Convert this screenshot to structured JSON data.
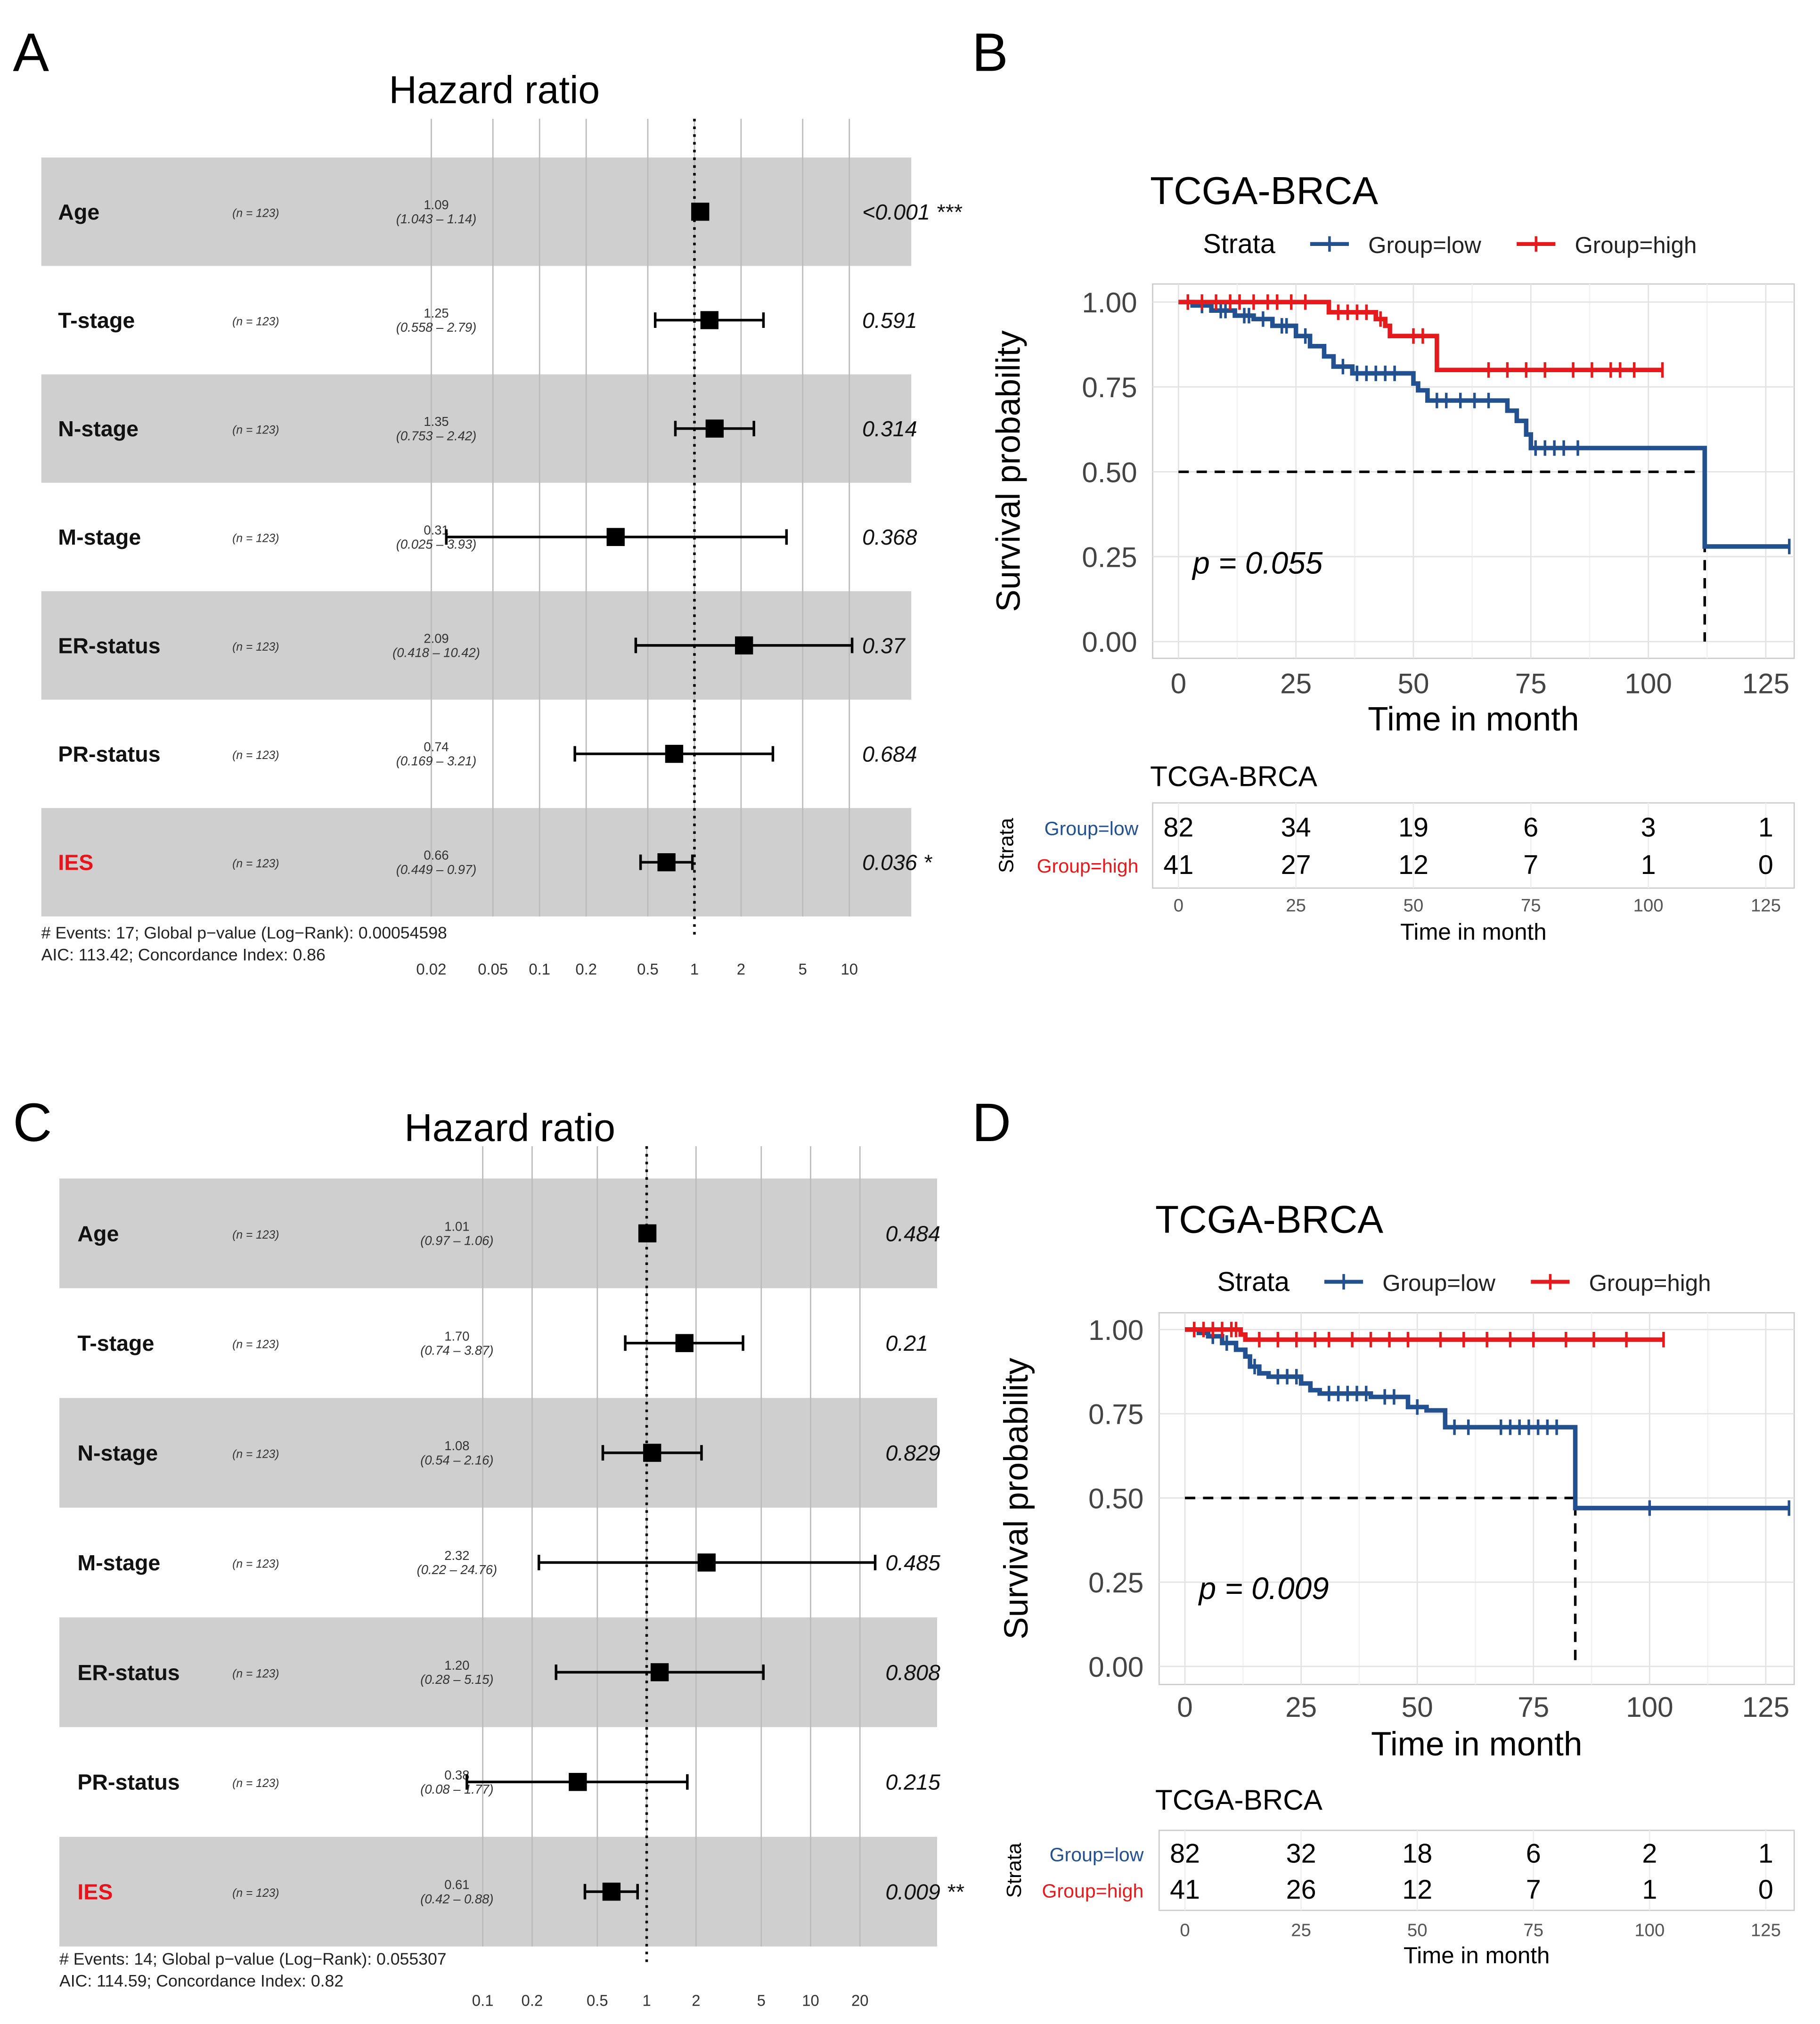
{
  "panel_letters": [
    "A",
    "B",
    "C",
    "D"
  ],
  "chart_data": [
    {
      "type": "forest",
      "title": "Hazard ratio",
      "rows": [
        {
          "label": "Age",
          "n": "(n = 123)",
          "hr": "1.09",
          "ci": "(1.043 – 1.14)",
          "est": 1.09,
          "lo": 1.043,
          "hi": 1.14,
          "p": "<0.001 ***",
          "highlight": false
        },
        {
          "label": "T-stage",
          "n": "(n = 123)",
          "hr": "1.25",
          "ci": "(0.558 – 2.79)",
          "est": 1.25,
          "lo": 0.558,
          "hi": 2.79,
          "p": "0.591",
          "highlight": false
        },
        {
          "label": "N-stage",
          "n": "(n = 123)",
          "hr": "1.35",
          "ci": "(0.753 – 2.42)",
          "est": 1.35,
          "lo": 0.753,
          "hi": 2.42,
          "p": "0.314",
          "highlight": false
        },
        {
          "label": "M-stage",
          "n": "(n = 123)",
          "hr": "0.31",
          "ci": "(0.025 – 3.93)",
          "est": 0.31,
          "lo": 0.025,
          "hi": 3.93,
          "p": "0.368",
          "highlight": false
        },
        {
          "label": "ER-status",
          "n": "(n = 123)",
          "hr": "2.09",
          "ci": "(0.418 – 10.42)",
          "est": 2.09,
          "lo": 0.418,
          "hi": 10.42,
          "p": "0.37",
          "highlight": false
        },
        {
          "label": "PR-status",
          "n": "(n = 123)",
          "hr": "0.74",
          "ci": "(0.169 – 3.21)",
          "est": 0.74,
          "lo": 0.169,
          "hi": 3.21,
          "p": "0.684",
          "highlight": false
        },
        {
          "label": "IES",
          "n": "(n = 123)",
          "hr": "0.66",
          "ci": "(0.449 – 0.97)",
          "est": 0.66,
          "lo": 0.449,
          "hi": 0.97,
          "p": "0.036 *",
          "highlight": true
        }
      ],
      "footer": [
        "# Events: 17; Global p−value (Log−Rank): 0.00054598",
        "AIC: 113.42; Concordance Index: 0.86"
      ],
      "xscale": "log",
      "xticks": [
        0.02,
        0.05,
        0.1,
        0.2,
        0.5,
        1,
        2,
        5,
        10
      ],
      "xtick_labels": [
        "0.02",
        "0.05",
        "0.1",
        "0.2",
        "0.5",
        "1",
        "2",
        "5",
        "10"
      ],
      "reference": 1
    },
    {
      "type": "line",
      "subtype": "kaplan-meier",
      "title": "TCGA-BRCA",
      "legend": {
        "title": "Strata",
        "placement": "top",
        "items": [
          "Group=low",
          "Group=high"
        ]
      },
      "xlabel": "Time in month",
      "ylabel": "Survival probability",
      "xlim": [
        0,
        130
      ],
      "ylim": [
        0,
        1
      ],
      "xticks": [
        0,
        25,
        50,
        75,
        100,
        125
      ],
      "xtick_labels": [
        "0",
        "25",
        "50",
        "75",
        "100",
        "125"
      ],
      "yticks": [
        0,
        0.25,
        0.5,
        0.75,
        1
      ],
      "ytick_labels": [
        "0.00",
        "0.25",
        "0.50",
        "0.75",
        "1.00"
      ],
      "p_text": "p = 0.055",
      "median_time": 112,
      "series": [
        {
          "name": "Group=low",
          "color": "#23508f",
          "steps": [
            [
              0,
              1
            ],
            [
              3,
              0.99
            ],
            [
              7,
              0.975
            ],
            [
              12,
              0.96
            ],
            [
              16,
              0.95
            ],
            [
              20,
              0.93
            ],
            [
              25,
              0.9
            ],
            [
              28,
              0.87
            ],
            [
              31,
              0.84
            ],
            [
              33,
              0.81
            ],
            [
              37,
              0.79
            ],
            [
              50,
              0.76
            ],
            [
              51,
              0.74
            ],
            [
              53,
              0.71
            ],
            [
              70,
              0.68
            ],
            [
              72,
              0.65
            ],
            [
              74,
              0.61
            ],
            [
              75,
              0.57
            ],
            [
              112,
              0.28
            ]
          ],
          "end": 130,
          "censor": [
            2,
            5,
            9,
            10,
            14,
            15,
            18,
            22,
            23,
            27,
            35,
            38,
            40,
            42,
            44,
            46,
            55,
            57,
            60,
            63,
            66,
            76,
            78,
            80,
            82,
            85,
            130
          ]
        },
        {
          "name": "Group=high",
          "color": "#e41a1c",
          "steps": [
            [
              0,
              1
            ],
            [
              32,
              0.97
            ],
            [
              42,
              0.95
            ],
            [
              44,
              0.93
            ],
            [
              45,
              0.9
            ],
            [
              55,
              0.8
            ]
          ],
          "end": 103,
          "censor": [
            2,
            5,
            8,
            11,
            13,
            16,
            19,
            21,
            24,
            27,
            34,
            36,
            38,
            40,
            43,
            50,
            52,
            66,
            70,
            74,
            78,
            84,
            88,
            92,
            94,
            97,
            103
          ]
        }
      ],
      "risk_table": {
        "title": "TCGA-BRCA",
        "strata_label": "Strata",
        "xlabel": "Time in month",
        "times": [
          0,
          25,
          50,
          75,
          100,
          125
        ],
        "time_labels": [
          "0",
          "25",
          "50",
          "75",
          "100",
          "125"
        ],
        "rows": [
          {
            "name": "Group=low",
            "color": "#23508f",
            "counts": [
              "82",
              "34",
              "19",
              "6",
              "3",
              "1"
            ]
          },
          {
            "name": "Group=high",
            "color": "#e41a1c",
            "counts": [
              "41",
              "27",
              "12",
              "7",
              "1",
              "0"
            ]
          }
        ]
      }
    },
    {
      "type": "forest",
      "title": "Hazard ratio",
      "rows": [
        {
          "label": "Age",
          "n": "(n = 123)",
          "hr": "1.01",
          "ci": "(0.97 – 1.06)",
          "est": 1.01,
          "lo": 0.97,
          "hi": 1.06,
          "p": "0.484",
          "highlight": false
        },
        {
          "label": "T-stage",
          "n": "(n = 123)",
          "hr": "1.70",
          "ci": "(0.74 – 3.87)",
          "est": 1.7,
          "lo": 0.74,
          "hi": 3.87,
          "p": "0.21",
          "highlight": false
        },
        {
          "label": "N-stage",
          "n": "(n = 123)",
          "hr": "1.08",
          "ci": "(0.54 – 2.16)",
          "est": 1.08,
          "lo": 0.54,
          "hi": 2.16,
          "p": "0.829",
          "highlight": false
        },
        {
          "label": "M-stage",
          "n": "(n = 123)",
          "hr": "2.32",
          "ci": "(0.22 – 24.76)",
          "est": 2.32,
          "lo": 0.22,
          "hi": 24.76,
          "p": "0.485",
          "highlight": false
        },
        {
          "label": "ER-status",
          "n": "(n = 123)",
          "hr": "1.20",
          "ci": "(0.28 – 5.15)",
          "est": 1.2,
          "lo": 0.28,
          "hi": 5.15,
          "p": "0.808",
          "highlight": false
        },
        {
          "label": "PR-status",
          "n": "(n = 123)",
          "hr": "0.38",
          "ci": "(0.08 – 1.77)",
          "est": 0.38,
          "lo": 0.08,
          "hi": 1.77,
          "p": "0.215",
          "highlight": false
        },
        {
          "label": "IES",
          "n": "(n = 123)",
          "hr": "0.61",
          "ci": "(0.42 – 0.88)",
          "est": 0.61,
          "lo": 0.42,
          "hi": 0.88,
          "p": "0.009 **",
          "highlight": true
        }
      ],
      "footer": [
        "# Events: 14; Global p−value (Log−Rank): 0.055307",
        "AIC: 114.59; Concordance Index: 0.82"
      ],
      "xscale": "log",
      "xticks": [
        0.1,
        0.2,
        0.5,
        1,
        2,
        5,
        10,
        20
      ],
      "xtick_labels": [
        "0.1",
        "0.2",
        "0.5",
        "1",
        "2",
        "5",
        "10",
        "20"
      ],
      "reference": 1
    },
    {
      "type": "line",
      "subtype": "kaplan-meier",
      "title": "TCGA-BRCA",
      "legend": {
        "title": "Strata",
        "placement": "top",
        "items": [
          "Group=low",
          "Group=high"
        ]
      },
      "xlabel": "Time in month",
      "ylabel": "Survival probability",
      "xlim": [
        0,
        130
      ],
      "ylim": [
        0,
        1
      ],
      "xticks": [
        0,
        25,
        50,
        75,
        100,
        125
      ],
      "xtick_labels": [
        "0",
        "25",
        "50",
        "75",
        "100",
        "125"
      ],
      "yticks": [
        0,
        0.25,
        0.5,
        0.75,
        1
      ],
      "ytick_labels": [
        "0.00",
        "0.25",
        "0.50",
        "0.75",
        "1.00"
      ],
      "p_text": "p = 0.009",
      "median_time": 84,
      "series": [
        {
          "name": "Group=low",
          "color": "#23508f",
          "steps": [
            [
              0,
              1
            ],
            [
              3,
              0.99
            ],
            [
              5,
              0.98
            ],
            [
              8,
              0.96
            ],
            [
              11,
              0.94
            ],
            [
              13,
              0.92
            ],
            [
              14,
              0.89
            ],
            [
              16,
              0.87
            ],
            [
              18,
              0.86
            ],
            [
              25,
              0.84
            ],
            [
              27,
              0.82
            ],
            [
              29,
              0.81
            ],
            [
              40,
              0.8
            ],
            [
              48,
              0.77
            ],
            [
              52,
              0.76
            ],
            [
              56,
              0.71
            ],
            [
              84,
              0.47
            ]
          ],
          "end": 130,
          "censor": [
            2,
            6,
            9,
            15,
            20,
            22,
            24,
            31,
            33,
            35,
            37,
            39,
            43,
            45,
            50,
            58,
            61,
            68,
            70,
            72,
            74,
            76,
            78,
            80,
            100,
            130
          ]
        },
        {
          "name": "Group=high",
          "color": "#e41a1c",
          "steps": [
            [
              0,
              1
            ],
            [
              12,
              0.985
            ],
            [
              13,
              0.97
            ]
          ],
          "end": 103,
          "censor": [
            2,
            4,
            6,
            8,
            10,
            11,
            16,
            20,
            24,
            28,
            31,
            36,
            40,
            44,
            48,
            55,
            60,
            65,
            70,
            75,
            82,
            88,
            95,
            103
          ]
        }
      ],
      "risk_table": {
        "title": "TCGA-BRCA",
        "strata_label": "Strata",
        "xlabel": "Time in month",
        "times": [
          0,
          25,
          50,
          75,
          100,
          125
        ],
        "time_labels": [
          "0",
          "25",
          "50",
          "75",
          "100",
          "125"
        ],
        "rows": [
          {
            "name": "Group=low",
            "color": "#23508f",
            "counts": [
              "82",
              "32",
              "18",
              "6",
              "2",
              "1"
            ]
          },
          {
            "name": "Group=high",
            "color": "#e41a1c",
            "counts": [
              "41",
              "26",
              "12",
              "7",
              "1",
              "0"
            ]
          }
        ]
      }
    }
  ]
}
